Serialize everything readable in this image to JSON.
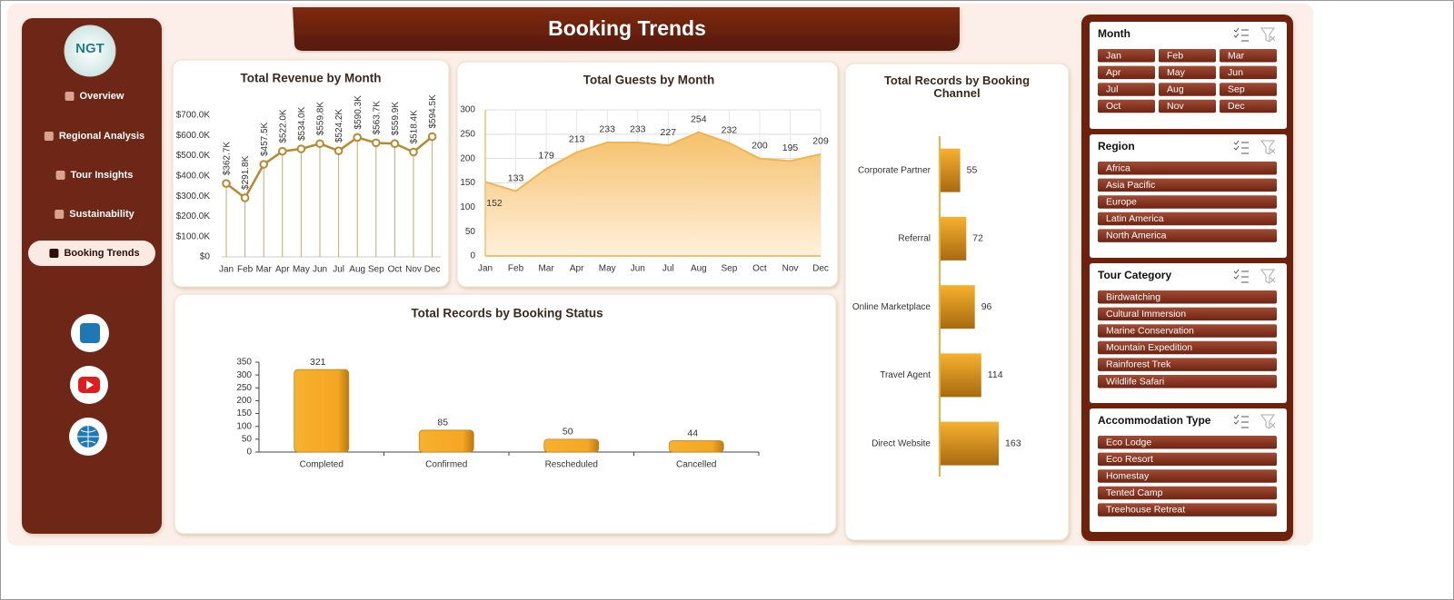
{
  "logo": "NGT",
  "header": {
    "title": "Booking Trends"
  },
  "nav": [
    {
      "label": "Overview",
      "active": false
    },
    {
      "label": "Regional Analysis",
      "active": false
    },
    {
      "label": "Tour Insights",
      "active": false
    },
    {
      "label": "Sustainability",
      "active": false
    },
    {
      "label": "Booking Trends",
      "active": true
    }
  ],
  "slicers": [
    {
      "title": "Month",
      "columns": 3,
      "items": [
        "Jan",
        "Feb",
        "Mar",
        "Apr",
        "May",
        "Jun",
        "Jul",
        "Aug",
        "Sep",
        "Oct",
        "Nov",
        "Dec"
      ]
    },
    {
      "title": "Region",
      "columns": 1,
      "items": [
        "Africa",
        "Asia Pacific",
        "Europe",
        "Latin America",
        "North America"
      ]
    },
    {
      "title": "Tour Category",
      "columns": 1,
      "items": [
        "Birdwatching",
        "Cultural Immersion",
        "Marine Conservation",
        "Mountain Expedition",
        "Rainforest Trek",
        "Wildlife Safari"
      ]
    },
    {
      "title": "Accommodation Type",
      "columns": 1,
      "items": [
        "Eco Lodge",
        "Eco Resort",
        "Homestay",
        "Tented Camp",
        "Treehouse Retreat"
      ]
    }
  ],
  "chart_data": [
    {
      "type": "line",
      "title": "Total Revenue by Month",
      "categories": [
        "Jan",
        "Feb",
        "Mar",
        "Apr",
        "May",
        "Jun",
        "Jul",
        "Aug",
        "Sep",
        "Oct",
        "Nov",
        "Dec"
      ],
      "values": [
        362700,
        291800,
        457500,
        522000,
        534000,
        559800,
        524200,
        590300,
        563700,
        559900,
        518400,
        594500
      ],
      "value_labels": [
        "$362.7K",
        "$291.8K",
        "$457.5K",
        "$522.0K",
        "$534.0K",
        "$559.8K",
        "$524.2K",
        "$590.3K",
        "$563.7K",
        "$559.9K",
        "$518.4K",
        "$594.5K"
      ],
      "ylim": [
        0,
        700000
      ],
      "yticks": [
        {
          "value": 0,
          "label": "$0"
        },
        {
          "value": 100000,
          "label": "$100.0K"
        },
        {
          "value": 200000,
          "label": "$200.0K"
        },
        {
          "value": 300000,
          "label": "$300.0K"
        },
        {
          "value": 400000,
          "label": "$400.0K"
        },
        {
          "value": 500000,
          "label": "$500.0K"
        },
        {
          "value": 600000,
          "label": "$600.0K"
        },
        {
          "value": 700000,
          "label": "$700.0K"
        }
      ],
      "color": "#b8892f",
      "grid": false
    },
    {
      "type": "area",
      "title": "Total Guests by Month",
      "categories": [
        "Jan",
        "Feb",
        "Mar",
        "Apr",
        "May",
        "Jun",
        "Jul",
        "Aug",
        "Sep",
        "Oct",
        "Nov",
        "Dec"
      ],
      "values": [
        152,
        133,
        179,
        213,
        233,
        233,
        227,
        254,
        232,
        200,
        195,
        209
      ],
      "ylim": [
        0,
        300
      ],
      "yticks": [
        0,
        50,
        100,
        150,
        200,
        250,
        300
      ],
      "color": "#f0b54e",
      "grid": true
    },
    {
      "type": "bar",
      "title": "Total Records by Booking Status",
      "categories": [
        "Completed",
        "Confirmed",
        "Rescheduled",
        "Cancelled"
      ],
      "values": [
        321,
        85,
        50,
        44
      ],
      "ylim": [
        0,
        350
      ],
      "yticks": [
        0,
        50,
        100,
        150,
        200,
        250,
        300,
        350
      ],
      "color": "#f5a623",
      "grid": false
    },
    {
      "type": "hbar",
      "title": "Total Records by Booking Channel",
      "categories": [
        "Corporate Partner",
        "Referral",
        "Online Marketplace",
        "Travel Agent",
        "Direct Website"
      ],
      "values": [
        55,
        72,
        96,
        114,
        163
      ],
      "color": "#f5a623"
    }
  ]
}
